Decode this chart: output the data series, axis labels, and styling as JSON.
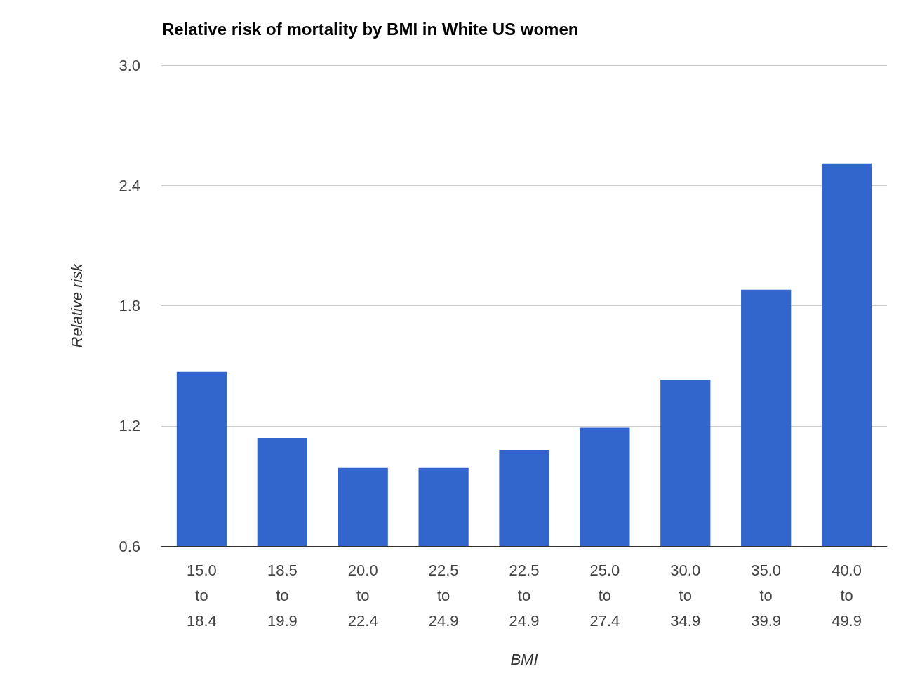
{
  "chart_data": {
    "type": "bar",
    "title": "Relative risk of mortality by BMI in White US women",
    "xlabel": "BMI",
    "ylabel": "Relative risk",
    "categories": [
      "15.0\nto\n18.4",
      "18.5\nto\n19.9",
      "20.0\nto\n22.4",
      "22.5\nto\n24.9",
      "22.5\nto\n24.9",
      "25.0\nto\n27.4",
      "30.0\nto\n34.9",
      "35.0\nto\n39.9",
      "40.0\nto\n49.9"
    ],
    "values": [
      1.47,
      1.14,
      0.99,
      0.99,
      1.08,
      1.19,
      1.43,
      1.88,
      2.51
    ],
    "color": "#3366cc",
    "ylim": [
      0.6,
      3.0
    ],
    "yticks": [
      {
        "value": 0.6,
        "label": "0.6"
      },
      {
        "value": 1.2,
        "label": "1.2"
      },
      {
        "value": 1.8,
        "label": "1.8"
      },
      {
        "value": 2.4,
        "label": "2.4"
      },
      {
        "value": 3.0,
        "label": "3.0"
      }
    ],
    "grid": "y"
  }
}
